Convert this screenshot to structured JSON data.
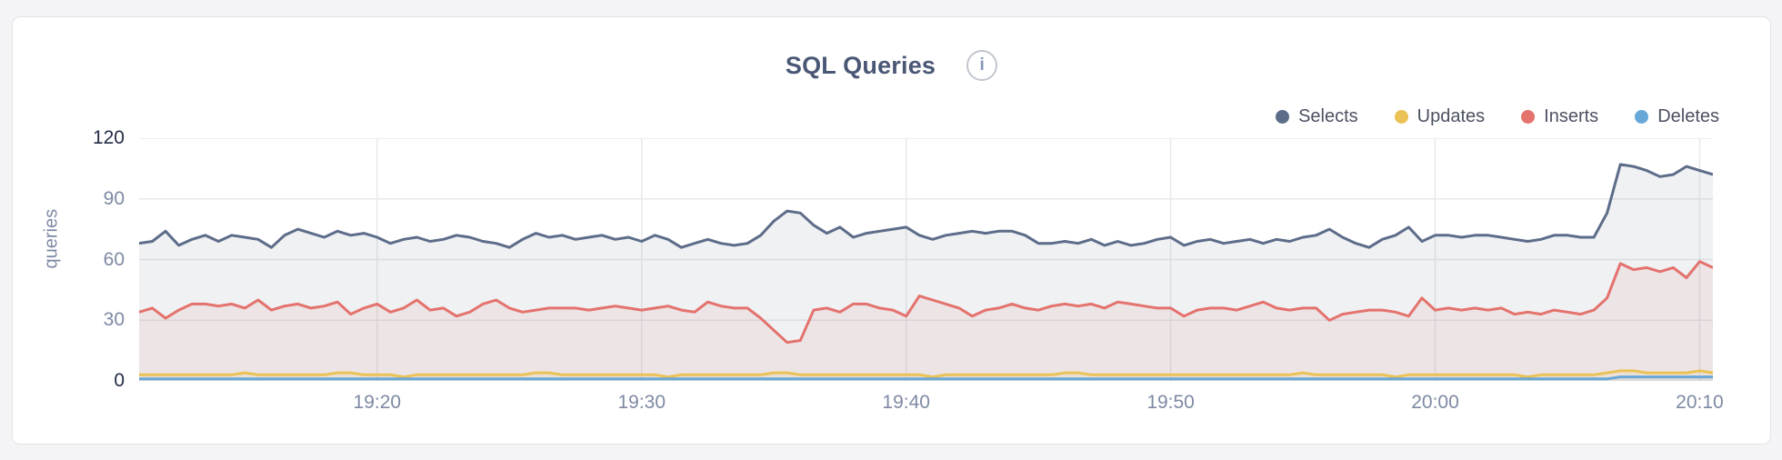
{
  "header": {
    "title": "SQL Queries",
    "info_glyph": "i"
  },
  "chart_data": {
    "type": "area",
    "title": "SQL Queries",
    "xlabel": "",
    "ylabel": "queries",
    "ylim": [
      0,
      120
    ],
    "y_ticks": [
      120,
      90,
      60,
      30,
      0
    ],
    "grid": true,
    "legend_position": "top-right",
    "x_start": "19:11:00",
    "x_interval_seconds": 30,
    "x_tick_labels": [
      "19:20",
      "19:30",
      "19:40",
      "19:50",
      "20:00",
      "20:10"
    ],
    "x_tick_indices": [
      18,
      38,
      58,
      78,
      98,
      118
    ],
    "colors": {
      "grid": "#e9e9ec",
      "axis_label": "#7e89a3",
      "axis_label_emphasis": "#232c44",
      "title": "#4a5775"
    },
    "series": [
      {
        "name": "Selects",
        "color": "#5d6c89",
        "fill": "rgba(99,113,140,0.10)",
        "values": [
          68,
          69,
          74,
          67,
          70,
          72,
          69,
          72,
          71,
          70,
          66,
          72,
          75,
          73,
          71,
          74,
          72,
          73,
          71,
          68,
          70,
          71,
          69,
          70,
          72,
          71,
          69,
          68,
          66,
          70,
          73,
          71,
          72,
          70,
          71,
          72,
          70,
          71,
          69,
          72,
          70,
          66,
          68,
          70,
          68,
          67,
          68,
          72,
          79,
          84,
          83,
          77,
          73,
          76,
          71,
          73,
          74,
          75,
          76,
          72,
          70,
          72,
          73,
          74,
          73,
          74,
          74,
          72,
          68,
          68,
          69,
          68,
          70,
          67,
          69,
          67,
          68,
          70,
          71,
          67,
          69,
          70,
          68,
          69,
          70,
          68,
          70,
          69,
          71,
          72,
          75,
          71,
          68,
          66,
          70,
          72,
          76,
          69,
          72,
          72,
          71,
          72,
          72,
          71,
          70,
          69,
          70,
          72,
          72,
          71,
          71,
          83,
          107,
          106,
          104,
          101,
          102,
          106,
          104,
          102
        ]
      },
      {
        "name": "Updates",
        "color": "#eac255",
        "fill": "rgba(234,194,85,0.10)",
        "values": [
          3,
          3,
          3,
          3,
          3,
          3,
          3,
          3,
          4,
          3,
          3,
          3,
          3,
          3,
          3,
          4,
          4,
          3,
          3,
          3,
          2,
          3,
          3,
          3,
          3,
          3,
          3,
          3,
          3,
          3,
          4,
          4,
          3,
          3,
          3,
          3,
          3,
          3,
          3,
          3,
          2,
          3,
          3,
          3,
          3,
          3,
          3,
          3,
          4,
          4,
          3,
          3,
          3,
          3,
          3,
          3,
          3,
          3,
          3,
          3,
          2,
          3,
          3,
          3,
          3,
          3,
          3,
          3,
          3,
          3,
          4,
          4,
          3,
          3,
          3,
          3,
          3,
          3,
          3,
          3,
          3,
          3,
          3,
          3,
          3,
          3,
          3,
          3,
          4,
          3,
          3,
          3,
          3,
          3,
          3,
          2,
          3,
          3,
          3,
          3,
          3,
          3,
          3,
          3,
          3,
          2,
          3,
          3,
          3,
          3,
          3,
          4,
          5,
          5,
          4,
          4,
          4,
          4,
          5,
          4
        ]
      },
      {
        "name": "Inserts",
        "color": "#e4726d",
        "fill": "rgba(228,114,109,0.10)",
        "values": [
          34,
          36,
          31,
          35,
          38,
          38,
          37,
          38,
          36,
          40,
          35,
          37,
          38,
          36,
          37,
          39,
          33,
          36,
          38,
          34,
          36,
          40,
          35,
          36,
          32,
          34,
          38,
          40,
          36,
          34,
          35,
          36,
          36,
          36,
          35,
          36,
          37,
          36,
          35,
          36,
          37,
          35,
          34,
          39,
          37,
          36,
          36,
          31,
          25,
          19,
          20,
          35,
          36,
          34,
          38,
          38,
          36,
          35,
          32,
          42,
          40,
          38,
          36,
          32,
          35,
          36,
          38,
          36,
          35,
          37,
          38,
          37,
          38,
          36,
          39,
          38,
          37,
          36,
          36,
          32,
          35,
          36,
          36,
          35,
          37,
          39,
          36,
          35,
          36,
          36,
          30,
          33,
          34,
          35,
          35,
          34,
          32,
          41,
          35,
          36,
          35,
          36,
          35,
          36,
          33,
          34,
          33,
          35,
          34,
          33,
          35,
          41,
          58,
          55,
          56,
          54,
          56,
          51,
          59,
          56
        ]
      },
      {
        "name": "Deletes",
        "color": "#68a8d8",
        "fill": "rgba(104,168,216,0.10)",
        "values": [
          1,
          1,
          1,
          1,
          1,
          1,
          1,
          1,
          1,
          1,
          1,
          1,
          1,
          1,
          1,
          1,
          1,
          1,
          1,
          1,
          1,
          1,
          1,
          1,
          1,
          1,
          1,
          1,
          1,
          1,
          1,
          1,
          1,
          1,
          1,
          1,
          1,
          1,
          1,
          1,
          1,
          1,
          1,
          1,
          1,
          1,
          1,
          1,
          1,
          1,
          1,
          1,
          1,
          1,
          1,
          1,
          1,
          1,
          1,
          1,
          1,
          1,
          1,
          1,
          1,
          1,
          1,
          1,
          1,
          1,
          1,
          1,
          1,
          1,
          1,
          1,
          1,
          1,
          1,
          1,
          1,
          1,
          1,
          1,
          1,
          1,
          1,
          1,
          1,
          1,
          1,
          1,
          1,
          1,
          1,
          1,
          1,
          1,
          1,
          1,
          1,
          1,
          1,
          1,
          1,
          1,
          1,
          1,
          1,
          1,
          1,
          1,
          2,
          2,
          2,
          2,
          2,
          2,
          2,
          2
        ]
      }
    ]
  }
}
